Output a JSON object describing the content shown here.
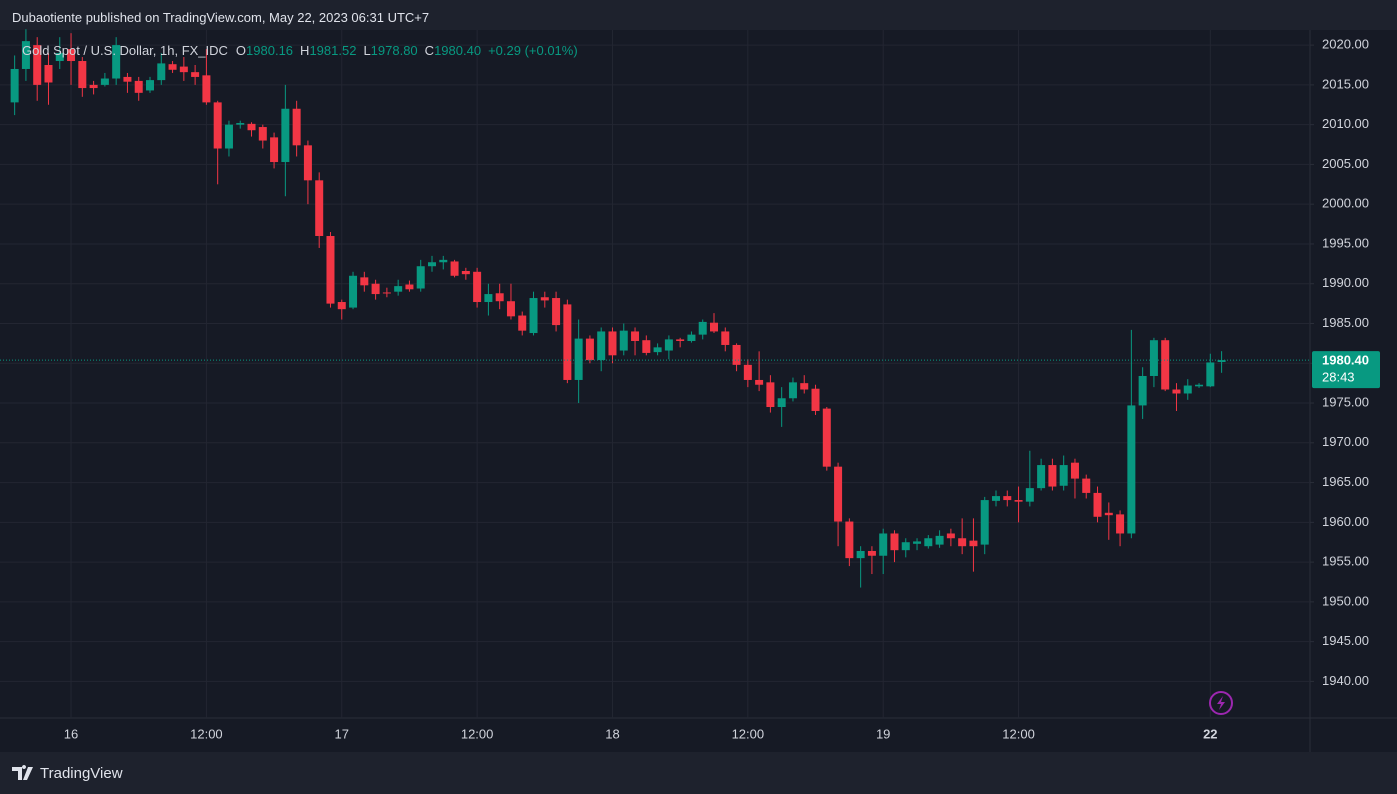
{
  "header": {
    "text": "Dubaotiente published on TradingView.com, May 22, 2023 06:31 UTC+7"
  },
  "footer": {
    "brand": "TradingView"
  },
  "chart_data": {
    "type": "candlestick",
    "symbol": "Gold Spot / U.S. Dollar, 1h, FX_IDC",
    "readout": {
      "o_label": "O",
      "o": "1980.16",
      "h_label": "H",
      "h": "1981.52",
      "l_label": "L",
      "l": "1978.80",
      "c_label": "C",
      "c": "1980.40",
      "change": "+0.29 (+0.01%)"
    },
    "up_color": "#089981",
    "down_color": "#f23645",
    "grid": true,
    "categories": [
      null,
      null,
      null,
      null,
      null,
      "16",
      null,
      null,
      null,
      null,
      null,
      null,
      null,
      null,
      null,
      null,
      null,
      "12:00",
      null,
      null,
      null,
      null,
      null,
      null,
      null,
      null,
      null,
      null,
      null,
      "17",
      null,
      null,
      null,
      null,
      null,
      null,
      null,
      null,
      null,
      null,
      null,
      "12:00",
      null,
      null,
      null,
      null,
      null,
      null,
      null,
      null,
      null,
      null,
      null,
      "18",
      null,
      null,
      null,
      null,
      null,
      null,
      null,
      null,
      null,
      null,
      null,
      "12:00",
      null,
      null,
      null,
      null,
      null,
      null,
      null,
      null,
      null,
      null,
      null,
      "19",
      null,
      null,
      null,
      null,
      null,
      null,
      null,
      null,
      null,
      null,
      null,
      "12:00",
      null,
      null,
      null,
      null,
      null,
      null,
      null,
      null,
      null,
      null,
      null,
      null,
      null,
      null,
      null,
      null,
      "22",
      null
    ],
    "open": [
      2012.8,
      2017,
      2020,
      2017.5,
      2018,
      2019.5,
      2018,
      2015,
      2015,
      2015.8,
      2016,
      2015.5,
      2014.3,
      2015.6,
      2017.6,
      2017.3,
      2016.6,
      2016.2,
      2012.8,
      2007,
      2010,
      2010.1,
      2009.7,
      2008.4,
      2005.3,
      2012,
      2007.4,
      2003,
      1996,
      1987.7,
      1987,
      1990.8,
      1990,
      1988.9,
      1989,
      1989.9,
      1989.4,
      1992.2,
      1992.7,
      1992.8,
      1991.6,
      1991.5,
      1987.7,
      1988.8,
      1987.8,
      1986,
      1983.8,
      1988.3,
      1988.2,
      1987.4,
      1977.9,
      1983.1,
      1980.4,
      1984,
      1981.6,
      1984,
      1982.9,
      1981.4,
      1981.6,
      1983,
      1982.8,
      1983.6,
      1985.1,
      1984,
      1982.3,
      1979.8,
      1977.9,
      1977.6,
      1974.5,
      1975.6,
      1977.5,
      1976.8,
      1974.3,
      1967,
      1960.1,
      1955.5,
      1956.4,
      1955.8,
      1958.6,
      1956.5,
      1957.3,
      1957,
      1957.2,
      1958.6,
      1958,
      1957.7,
      1957.2,
      1962.7,
      1963.3,
      1962.8,
      1962.6,
      1964.3,
      1967.2,
      1964.6,
      1967.5,
      1965.5,
      1963.7,
      1961.2,
      1961,
      1958.6,
      1974.7,
      1978.4,
      1982.9,
      1976.7,
      1976.2,
      1977.1,
      1977.1,
      1980.16
    ],
    "high": [
      2018.7,
      2022,
      2021,
      2019,
      2021,
      2021.5,
      2018.5,
      2015.5,
      2016.5,
      2021,
      2016.5,
      2016,
      2016,
      2019,
      2018,
      2018.5,
      2017.5,
      2019.5,
      2013,
      2010.5,
      2010.5,
      2010.3,
      2010,
      2009,
      2015,
      2013,
      2008,
      2004,
      1996.5,
      1988,
      1991.5,
      1991.5,
      1990.5,
      1989.5,
      1990.5,
      1990.4,
      1993,
      1993.5,
      1993.5,
      1993,
      1992,
      1992,
      1990,
      1990,
      1990,
      1986.5,
      1989,
      1989,
      1989,
      1988,
      1985.5,
      1983.5,
      1984.5,
      1984.5,
      1985,
      1984.5,
      1983.5,
      1982.5,
      1983.5,
      1983.2,
      1984,
      1985.5,
      1986.3,
      1984.5,
      1982.5,
      1980.5,
      1981.5,
      1978.5,
      1977,
      1978.2,
      1978.5,
      1977.3,
      1974.5,
      1967.5,
      1960.5,
      1957,
      1957,
      1959.2,
      1959,
      1958,
      1958,
      1958.4,
      1959,
      1959.2,
      1960.5,
      1960.5,
      1963.2,
      1964,
      1964,
      1964.5,
      1969,
      1968,
      1968,
      1968.4,
      1968,
      1966,
      1964.5,
      1962.5,
      1961.5,
      1984.2,
      1979.5,
      1983.2,
      1983.2,
      1977.5,
      1978,
      1977.5,
      1981.2,
      1981.52
    ],
    "low": [
      2011.2,
      2015.5,
      2013,
      2012.5,
      2017,
      2015,
      2013.5,
      2013.8,
      2014.8,
      2015,
      2014,
      2013,
      2014,
      2015,
      2016.5,
      2015.5,
      2015,
      2012.5,
      2002.5,
      2006,
      2009.5,
      2008.5,
      2007,
      2004.5,
      2001,
      2006,
      2000,
      1994.5,
      1987,
      1985.5,
      1986.8,
      1989,
      1988,
      1988.3,
      1988.5,
      1989,
      1989,
      1991.5,
      1991.8,
      1990.8,
      1990.5,
      1987,
      1986,
      1986.8,
      1985.5,
      1983.5,
      1983.5,
      1987,
      1984,
      1977.5,
      1975,
      1980,
      1979,
      1980,
      1981,
      1981,
      1981,
      1981,
      1980.5,
      1982,
      1982.6,
      1983,
      1983.8,
      1981.5,
      1979,
      1977,
      1976.5,
      1973.8,
      1972,
      1975.2,
      1976.2,
      1973.5,
      1966.5,
      1957,
      1954.5,
      1951.8,
      1953.5,
      1953.5,
      1955,
      1955.6,
      1956.5,
      1956.7,
      1956.8,
      1957,
      1956,
      1953.8,
      1956,
      1962,
      1962,
      1960,
      1962,
      1964,
      1964,
      1964,
      1963,
      1963,
      1960,
      1957.8,
      1957,
      1958,
      1973,
      1977,
      1976.5,
      1974,
      1975.4,
      1976.9,
      1977,
      1978.8
    ],
    "close": [
      2017,
      2020.5,
      2015,
      2015.3,
      2019,
      2018,
      2014.6,
      2014.6,
      2015.8,
      2020,
      2015.4,
      2014,
      2015.6,
      2017.7,
      2016.9,
      2016.6,
      2016,
      2012.8,
      2007,
      2010,
      2010.2,
      2009.3,
      2008,
      2005.3,
      2012,
      2007.4,
      2003,
      1996,
      1987.5,
      1986.8,
      1991,
      1989.8,
      1988.7,
      1988.8,
      1989.7,
      1989.3,
      1992.2,
      1992.7,
      1993,
      1991,
      1991.2,
      1987.7,
      1988.7,
      1987.8,
      1985.9,
      1984.1,
      1988.2,
      1987.9,
      1984.8,
      1977.9,
      1983.1,
      1980.4,
      1984,
      1981,
      1984.1,
      1982.8,
      1981.3,
      1982,
      1983,
      1982.8,
      1983.6,
      1985.2,
      1984,
      1982.3,
      1979.8,
      1977.9,
      1977.3,
      1974.5,
      1975.6,
      1977.6,
      1976.7,
      1974,
      1967,
      1960.1,
      1955.5,
      1956.4,
      1955.8,
      1958.6,
      1956.5,
      1957.5,
      1957.6,
      1958,
      1958.3,
      1958,
      1957,
      1957,
      1962.8,
      1963.3,
      1962.8,
      1962.6,
      1964.3,
      1967.2,
      1964.5,
      1967.2,
      1965.5,
      1963.7,
      1960.7,
      1960.9,
      1958.6,
      1974.7,
      1978.4,
      1982.9,
      1976.7,
      1976.2,
      1977.2,
      1977.3,
      1980.1,
      1980.4
    ],
    "ylim": [
      1935.4,
      2021.9
    ],
    "yticks": [
      {
        "value": 1940,
        "label": "1940.00"
      },
      {
        "value": 1945,
        "label": "1945.00"
      },
      {
        "value": 1950,
        "label": "1950.00"
      },
      {
        "value": 1955,
        "label": "1955.00"
      },
      {
        "value": 1960,
        "label": "1960.00"
      },
      {
        "value": 1965,
        "label": "1965.00"
      },
      {
        "value": 1970,
        "label": "1970.00"
      },
      {
        "value": 1975,
        "label": "1975.00"
      },
      {
        "value": 1980,
        "label": "1980.00"
      },
      {
        "value": 1985,
        "label": "1985.00"
      },
      {
        "value": 1990,
        "label": "1990.00"
      },
      {
        "value": 1995,
        "label": "1995.00"
      },
      {
        "value": 2000,
        "label": "2000.00"
      },
      {
        "value": 2005,
        "label": "2005.00"
      },
      {
        "value": 2010,
        "label": "2010.00"
      },
      {
        "value": 2015,
        "label": "2015.00"
      },
      {
        "value": 2020,
        "label": "2020.00"
      }
    ],
    "last_price": {
      "value": 1980.4,
      "label": "1980.40"
    },
    "countdown": "28:43"
  }
}
